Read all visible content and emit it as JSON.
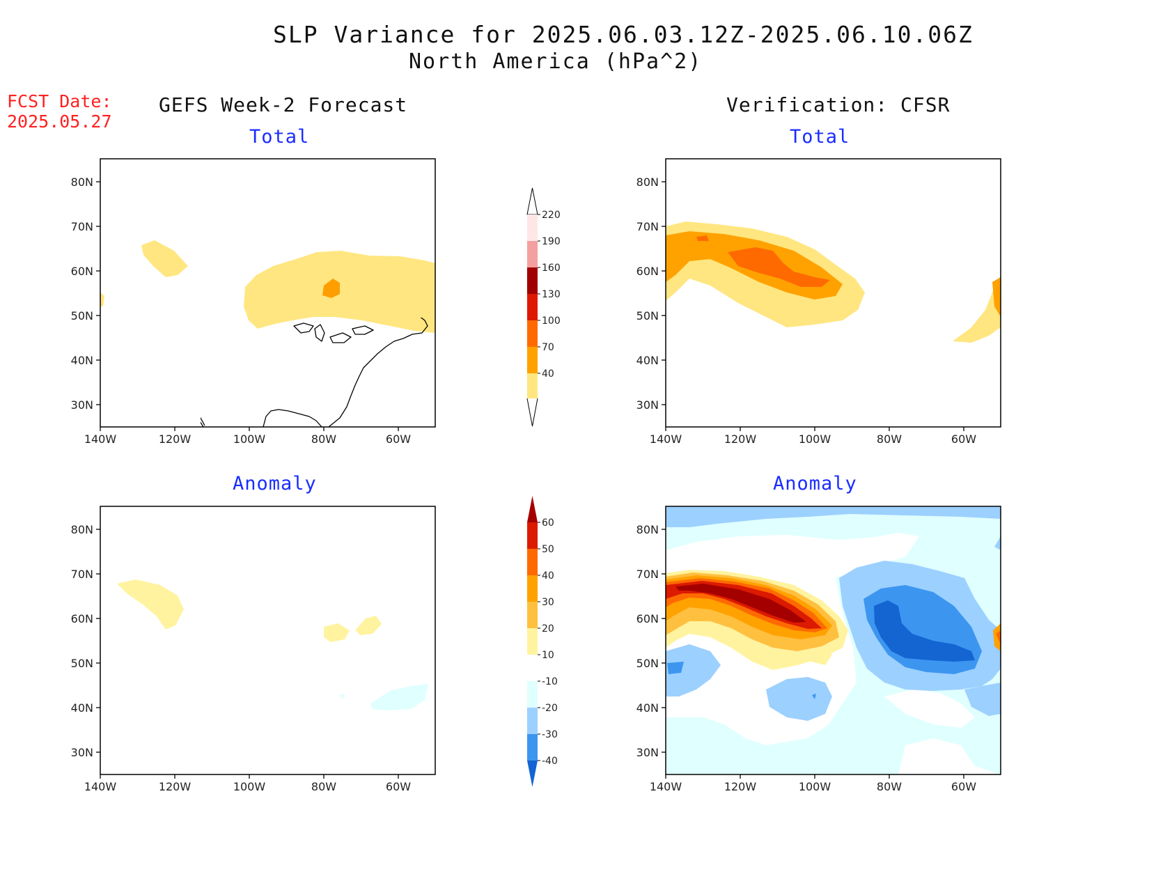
{
  "header": {
    "title": "SLP Variance for 2025.06.03.12Z-2025.06.10.06Z",
    "subtitle": "North America (hPa^2)",
    "fcst_label": "FCST Date:",
    "fcst_date": "2025.05.27",
    "left_heading": "GEFS Week-2 Forecast",
    "right_heading": "Verification: CFSR"
  },
  "panels": {
    "total_title": "Total",
    "anomaly_title": "Anomaly"
  },
  "axes": {
    "lat_labels": [
      "80N",
      "70N",
      "60N",
      "50N",
      "40N",
      "30N"
    ],
    "lon_labels": [
      "140W",
      "120W",
      "100W",
      "80W",
      "60W"
    ]
  },
  "colorbars": {
    "total": {
      "labels": [
        "220",
        "190",
        "160",
        "130",
        "100",
        "70",
        "40"
      ],
      "colors": [
        "#ffe6e6",
        "#f4a0a0",
        "#a00000",
        "#dd1a00",
        "#ff6a00",
        "#ffa200",
        "#ffe680"
      ]
    },
    "anomaly": {
      "labels": [
        "60",
        "50",
        "40",
        "30",
        "20",
        "10",
        "-10",
        "-20",
        "-30",
        "-40"
      ],
      "colors": [
        "#a50000",
        "#dc1a00",
        "#ff6a00",
        "#ffa200",
        "#ffc040",
        "#fff3a0",
        "#ffffff",
        "#e0ffff",
        "#9cd0ff",
        "#3c96f0",
        "#1464d2"
      ]
    }
  }
}
